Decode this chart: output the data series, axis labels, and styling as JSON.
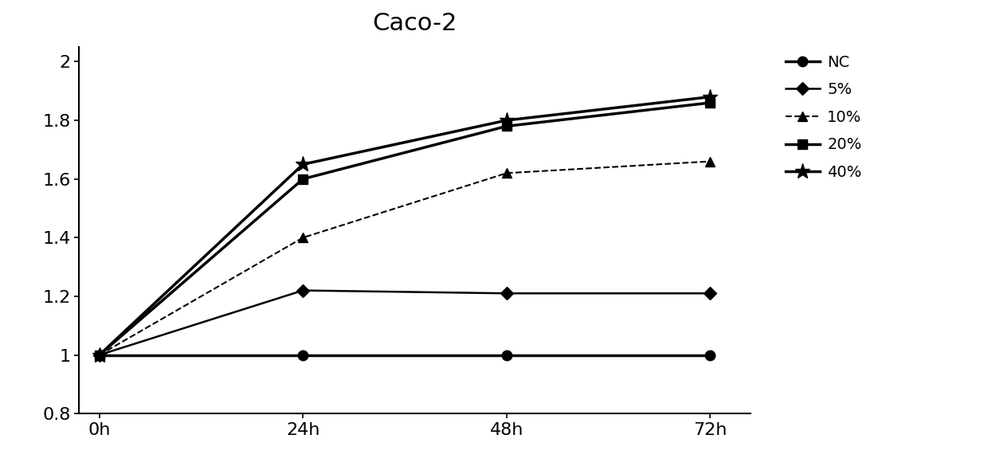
{
  "title": "Caco-2",
  "title_fontsize": 22,
  "x_values": [
    0,
    1,
    2,
    3
  ],
  "x_labels": [
    "0h",
    "24h",
    "48h",
    "72h"
  ],
  "series": [
    {
      "label": "NC",
      "values": [
        1.0,
        1.0,
        1.0,
        1.0
      ],
      "color": "#000000",
      "marker": "o",
      "markersize": 9,
      "linewidth": 2.5,
      "linestyle": "-"
    },
    {
      "label": "5%",
      "values": [
        1.0,
        1.22,
        1.21,
        1.21
      ],
      "color": "#000000",
      "marker": "D",
      "markersize": 8,
      "linewidth": 1.8,
      "linestyle": "-"
    },
    {
      "label": "10%",
      "values": [
        1.0,
        1.4,
        1.62,
        1.66
      ],
      "color": "#000000",
      "marker": "^",
      "markersize": 9,
      "linewidth": 1.5,
      "linestyle": "--"
    },
    {
      "label": "20%",
      "values": [
        1.0,
        1.6,
        1.78,
        1.86
      ],
      "color": "#000000",
      "marker": "s",
      "markersize": 9,
      "linewidth": 2.5,
      "linestyle": "-"
    },
    {
      "label": "40%",
      "values": [
        1.0,
        1.65,
        1.8,
        1.88
      ],
      "color": "#000000",
      "marker": "*",
      "markersize": 14,
      "linewidth": 2.5,
      "linestyle": "-"
    }
  ],
  "ylim": [
    0.8,
    2.05
  ],
  "yticks": [
    0.8,
    1.0,
    1.2,
    1.4,
    1.6,
    1.8,
    2.0
  ],
  "xlim": [
    -0.1,
    3.2
  ],
  "background_color": "#ffffff",
  "legend_fontsize": 14,
  "tick_fontsize": 16,
  "figsize": [
    12.4,
    5.9
  ],
  "dpi": 100
}
